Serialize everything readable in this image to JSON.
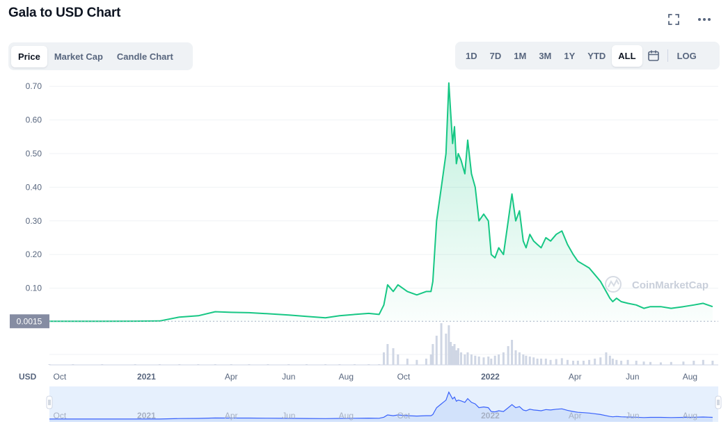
{
  "header": {
    "title": "Gala to USD Chart",
    "fullscreen_icon": "fullscreen-icon",
    "more_icon": "more-horizontal-icon"
  },
  "chart_tabs": [
    {
      "label": "Price",
      "active": true
    },
    {
      "label": "Market Cap",
      "active": false
    },
    {
      "label": "Candle Chart",
      "active": false
    }
  ],
  "ranges": [
    {
      "label": "1D",
      "active": false
    },
    {
      "label": "7D",
      "active": false
    },
    {
      "label": "1M",
      "active": false
    },
    {
      "label": "3M",
      "active": false
    },
    {
      "label": "1Y",
      "active": false
    },
    {
      "label": "YTD",
      "active": false
    },
    {
      "label": "ALL",
      "active": true
    }
  ],
  "calendar_icon": "calendar-icon",
  "log_label": "LOG",
  "colors": {
    "accent": "#16c784",
    "accent_fill": "#16c784",
    "volume": "#cfd6e4",
    "grid": "#eff2f5",
    "navigator_bg": "#e6f0fd",
    "navigator_line": "#3861fb",
    "price_label_bg": "#858ca2"
  },
  "chart_data": {
    "type": "line",
    "series": [
      {
        "name": "",
        "x": [
          "2020-09-20",
          "2020-10-15",
          "2020-11-15",
          "2020-12-20",
          "2021-01-15",
          "2021-02-05",
          "2021-02-25",
          "2021-03-15",
          "2021-04-01",
          "2021-04-20",
          "2021-05-10",
          "2021-06-01",
          "2021-06-20",
          "2021-07-10",
          "2021-07-25",
          "2021-08-10",
          "2021-08-25",
          "2021-09-05",
          "2021-09-10",
          "2021-09-14",
          "2021-09-20",
          "2021-09-25",
          "2021-10-05",
          "2021-10-15",
          "2021-10-25",
          "2021-10-30",
          "2021-11-01",
          "2021-11-05",
          "2021-11-10",
          "2021-11-15",
          "2021-11-18",
          "2021-11-20",
          "2021-11-22",
          "2021-11-24",
          "2021-11-26",
          "2021-11-28",
          "2021-12-01",
          "2021-12-05",
          "2021-12-08",
          "2021-12-12",
          "2021-12-16",
          "2021-12-20",
          "2021-12-25",
          "2021-12-30",
          "2022-01-02",
          "2022-01-06",
          "2022-01-10",
          "2022-01-15",
          "2022-01-20",
          "2022-01-24",
          "2022-01-28",
          "2022-02-01",
          "2022-02-05",
          "2022-02-08",
          "2022-02-12",
          "2022-02-16",
          "2022-02-20",
          "2022-02-24",
          "2022-03-01",
          "2022-03-06",
          "2022-03-12",
          "2022-03-18",
          "2022-03-24",
          "2022-03-30",
          "2022-04-04",
          "2022-04-10",
          "2022-04-16",
          "2022-04-22",
          "2022-04-28",
          "2022-05-04",
          "2022-05-08",
          "2022-05-11",
          "2022-05-15",
          "2022-05-20",
          "2022-05-27",
          "2022-06-05",
          "2022-06-13",
          "2022-06-20",
          "2022-07-01",
          "2022-07-12",
          "2022-07-25",
          "2022-08-05",
          "2022-08-15",
          "2022-08-25"
        ],
        "y": [
          0.0015,
          0.0015,
          0.0016,
          0.0018,
          0.0025,
          0.014,
          0.018,
          0.03,
          0.028,
          0.027,
          0.024,
          0.02,
          0.016,
          0.012,
          0.018,
          0.022,
          0.025,
          0.022,
          0.05,
          0.11,
          0.09,
          0.11,
          0.09,
          0.08,
          0.09,
          0.09,
          0.12,
          0.3,
          0.4,
          0.5,
          0.71,
          0.62,
          0.53,
          0.58,
          0.47,
          0.5,
          0.48,
          0.44,
          0.54,
          0.44,
          0.4,
          0.3,
          0.32,
          0.3,
          0.2,
          0.19,
          0.22,
          0.2,
          0.3,
          0.38,
          0.3,
          0.33,
          0.24,
          0.22,
          0.26,
          0.24,
          0.23,
          0.22,
          0.25,
          0.24,
          0.26,
          0.27,
          0.23,
          0.2,
          0.18,
          0.17,
          0.16,
          0.14,
          0.12,
          0.09,
          0.07,
          0.06,
          0.07,
          0.06,
          0.055,
          0.05,
          0.04,
          0.045,
          0.045,
          0.04,
          0.045,
          0.05,
          0.055,
          0.045
        ]
      }
    ],
    "volume": [
      0,
      0,
      0,
      0,
      0,
      0,
      0,
      0,
      0,
      0,
      0,
      0,
      0,
      0,
      0,
      0,
      0,
      0,
      0.3,
      0.5,
      0.4,
      0.25,
      0.15,
      0.12,
      0.15,
      0.25,
      0.5,
      0.7,
      1.0,
      0.75,
      0.95,
      0.55,
      0.45,
      0.5,
      0.35,
      0.4,
      0.3,
      0.25,
      0.3,
      0.25,
      0.22,
      0.2,
      0.18,
      0.2,
      0.15,
      0.22,
      0.25,
      0.3,
      0.45,
      0.6,
      0.35,
      0.3,
      0.25,
      0.22,
      0.2,
      0.18,
      0.15,
      0.15,
      0.15,
      0.12,
      0.14,
      0.16,
      0.12,
      0.1,
      0.1,
      0.1,
      0.12,
      0.15,
      0.18,
      0.3,
      0.22,
      0.15,
      0.12,
      0.1,
      0.12,
      0.1,
      0.08,
      0.07,
      0.06,
      0.07,
      0.08,
      0.1,
      0.12,
      0.1
    ],
    "y_ticks": [
      "0.70",
      "0.60",
      "0.50",
      "0.40",
      "0.30",
      "0.20",
      "0.10"
    ],
    "ylim": [
      0,
      0.75
    ],
    "current_price_label": "0.0015",
    "x_ticks": [
      {
        "label": "Oct",
        "date": "2020-10-01",
        "bold": false
      },
      {
        "label": "2021",
        "date": "2021-01-01",
        "bold": true
      },
      {
        "label": "Apr",
        "date": "2021-04-01",
        "bold": false
      },
      {
        "label": "Jun",
        "date": "2021-06-01",
        "bold": false
      },
      {
        "label": "Aug",
        "date": "2021-08-01",
        "bold": false
      },
      {
        "label": "Oct",
        "date": "2021-10-01",
        "bold": false
      },
      {
        "label": "2022",
        "date": "2022-01-01",
        "bold": true
      },
      {
        "label": "Apr",
        "date": "2022-04-01",
        "bold": false
      },
      {
        "label": "Jun",
        "date": "2022-06-01",
        "bold": false
      },
      {
        "label": "Aug",
        "date": "2022-08-01",
        "bold": false
      }
    ],
    "xlim": [
      "2020-09-20",
      "2022-08-31"
    ],
    "currency_label": "USD",
    "watermark": "CoinMarketCap",
    "grid": true
  }
}
